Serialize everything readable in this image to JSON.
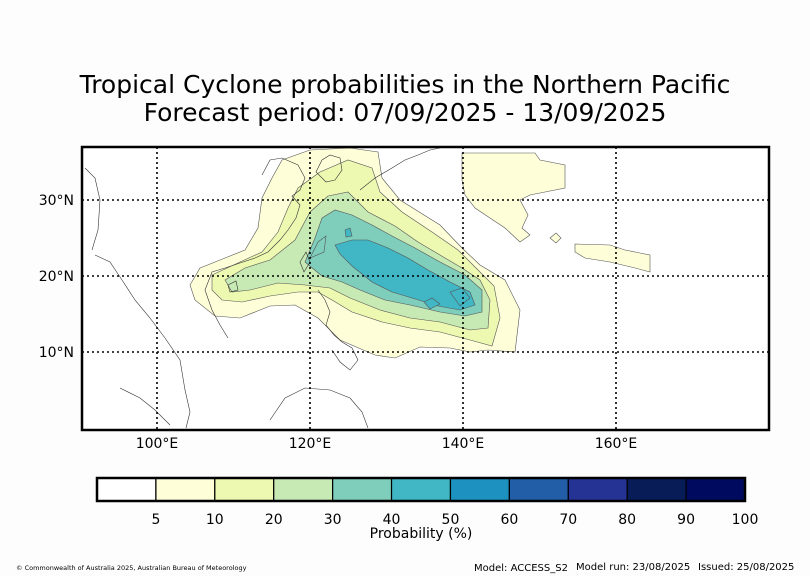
{
  "title": {
    "line1": "Tropical Cyclone probabilities in the Northern Pacific",
    "line2": "Forecast period: 07/09/2025 - 13/09/2025"
  },
  "map": {
    "lon_ticks": [
      "100°E",
      "120°E",
      "140°E",
      "160°E"
    ],
    "lat_ticks": [
      "30°N",
      "20°N",
      "10°N"
    ],
    "gridlines": "dotted",
    "levels": [
      {
        "min": 5,
        "color": "#fefed8"
      },
      {
        "min": 10,
        "color": "#edf8b1"
      },
      {
        "min": 20,
        "color": "#c7e9b4"
      },
      {
        "min": 30,
        "color": "#7fcdbb"
      },
      {
        "min": 40,
        "color": "#41b6c4"
      }
    ]
  },
  "colorbar": {
    "ticks": [
      "5",
      "10",
      "20",
      "30",
      "40",
      "50",
      "60",
      "70",
      "80",
      "90",
      "100"
    ],
    "colors": [
      "#ffffff",
      "#fefed8",
      "#edf8b1",
      "#c7e9b4",
      "#7fcdbb",
      "#41b6c4",
      "#1d91c0",
      "#225ea8",
      "#253494",
      "#081d58",
      "#000a5e"
    ],
    "label": "Probability (%)"
  },
  "footer": {
    "copyright": "© Commonwealth of Australia 2025, Australian Bureau of Meteorology",
    "model": "Model: ACCESS_S2",
    "model_run": "Model run: 23/08/2025",
    "issued": "Issued: 25/08/2025"
  }
}
